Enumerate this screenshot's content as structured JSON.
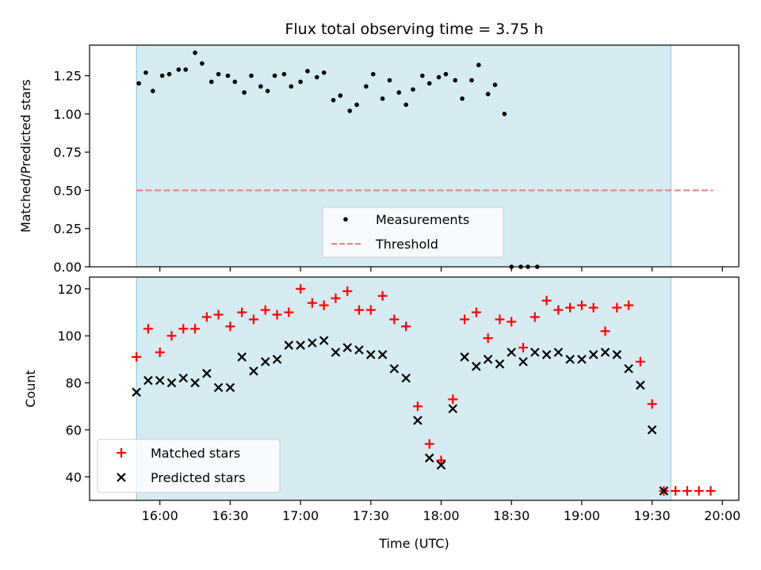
{
  "chart_data": [
    {
      "type": "scatter",
      "title": "Flux total observing time = 3.75 h",
      "ylabel": "Matched/Predicted stars",
      "xlabel": "",
      "x_axis": "time_utc",
      "ylim": [
        0,
        1.45
      ],
      "yticks": [
        0.0,
        0.25,
        0.5,
        0.75,
        1.0,
        1.25
      ],
      "ytick_labels": [
        "0.00",
        "0.25",
        "0.50",
        "0.75",
        "1.00",
        "1.25"
      ],
      "shaded_span": {
        "start": "15:50",
        "end": "19:38",
        "color": "#add8e6"
      },
      "legend_position": "lower center",
      "series": [
        {
          "name": "Measurements",
          "kind": "points",
          "color": "#000000",
          "points": [
            [
              "15:51",
              1.2
            ],
            [
              "15:54",
              1.27
            ],
            [
              "15:57",
              1.15
            ],
            [
              "16:01",
              1.25
            ],
            [
              "16:04",
              1.26
            ],
            [
              "16:08",
              1.29
            ],
            [
              "16:11",
              1.29
            ],
            [
              "16:15",
              1.4
            ],
            [
              "16:18",
              1.33
            ],
            [
              "16:22",
              1.21
            ],
            [
              "16:25",
              1.26
            ],
            [
              "16:29",
              1.25
            ],
            [
              "16:32",
              1.21
            ],
            [
              "16:36",
              1.14
            ],
            [
              "16:39",
              1.25
            ],
            [
              "16:43",
              1.18
            ],
            [
              "16:46",
              1.15
            ],
            [
              "16:49",
              1.25
            ],
            [
              "16:53",
              1.26
            ],
            [
              "16:56",
              1.18
            ],
            [
              "17:00",
              1.21
            ],
            [
              "17:03",
              1.28
            ],
            [
              "17:07",
              1.24
            ],
            [
              "17:10",
              1.27
            ],
            [
              "17:14",
              1.09
            ],
            [
              "17:17",
              1.12
            ],
            [
              "17:21",
              1.02
            ],
            [
              "17:24",
              1.06
            ],
            [
              "17:28",
              1.18
            ],
            [
              "17:31",
              1.26
            ],
            [
              "17:35",
              1.1
            ],
            [
              "17:38",
              1.22
            ],
            [
              "17:42",
              1.14
            ],
            [
              "17:45",
              1.06
            ],
            [
              "17:48",
              1.16
            ],
            [
              "17:52",
              1.25
            ],
            [
              "17:55",
              1.2
            ],
            [
              "17:59",
              1.24
            ],
            [
              "18:02",
              1.26
            ],
            [
              "18:06",
              1.22
            ],
            [
              "18:09",
              1.1
            ],
            [
              "18:13",
              1.22
            ],
            [
              "18:16",
              1.32
            ],
            [
              "18:20",
              1.13
            ],
            [
              "18:23",
              1.19
            ],
            [
              "18:27",
              1.0
            ],
            [
              "18:30",
              0.0
            ],
            [
              "18:34",
              0.0
            ],
            [
              "18:37",
              0.0
            ],
            [
              "18:41",
              0.0
            ]
          ]
        },
        {
          "name": "Threshold",
          "kind": "dashed-line",
          "color": "#f08080",
          "points": [
            [
              "15:50",
              0.5
            ],
            [
              "19:56",
              0.5
            ]
          ]
        }
      ]
    },
    {
      "type": "scatter",
      "title": "",
      "ylabel": "Count",
      "xlabel": "Time (UTC)",
      "x_axis": "time_utc",
      "xticks": [
        "16:00",
        "16:30",
        "17:00",
        "17:30",
        "18:00",
        "18:30",
        "19:00",
        "19:30",
        "20:00"
      ],
      "ylim": [
        30,
        125
      ],
      "yticks": [
        40,
        60,
        80,
        100,
        120
      ],
      "ytick_labels": [
        "40",
        "60",
        "80",
        "100",
        "120"
      ],
      "shaded_span": {
        "start": "15:50",
        "end": "19:38",
        "color": "#add8e6"
      },
      "legend_position": "lower left",
      "series": [
        {
          "name": "Matched stars",
          "kind": "plus",
          "color": "#ff0000",
          "points": [
            [
              "15:50",
              91
            ],
            [
              "15:55",
              103
            ],
            [
              "16:00",
              93
            ],
            [
              "16:05",
              100
            ],
            [
              "16:10",
              103
            ],
            [
              "16:15",
              103
            ],
            [
              "16:20",
              108
            ],
            [
              "16:25",
              109
            ],
            [
              "16:30",
              104
            ],
            [
              "16:35",
              110
            ],
            [
              "16:40",
              107
            ],
            [
              "16:45",
              111
            ],
            [
              "16:50",
              109
            ],
            [
              "16:55",
              110
            ],
            [
              "17:00",
              120
            ],
            [
              "17:05",
              114
            ],
            [
              "17:10",
              113
            ],
            [
              "17:15",
              116
            ],
            [
              "17:20",
              119
            ],
            [
              "17:25",
              111
            ],
            [
              "17:30",
              111
            ],
            [
              "17:35",
              117
            ],
            [
              "17:40",
              107
            ],
            [
              "17:45",
              104
            ],
            [
              "17:50",
              70
            ],
            [
              "17:55",
              54
            ],
            [
              "18:00",
              47
            ],
            [
              "18:05",
              73
            ],
            [
              "18:10",
              107
            ],
            [
              "18:15",
              110
            ],
            [
              "18:20",
              99
            ],
            [
              "18:25",
              107
            ],
            [
              "18:30",
              106
            ],
            [
              "18:35",
              95
            ],
            [
              "18:40",
              108
            ],
            [
              "18:45",
              115
            ],
            [
              "18:50",
              111
            ],
            [
              "18:55",
              112
            ],
            [
              "19:00",
              113
            ],
            [
              "19:05",
              112
            ],
            [
              "19:10",
              102
            ],
            [
              "19:15",
              112
            ],
            [
              "19:20",
              113
            ],
            [
              "19:25",
              89
            ],
            [
              "19:30",
              71
            ],
            [
              "19:35",
              34
            ],
            [
              "19:40",
              34
            ],
            [
              "19:45",
              34
            ],
            [
              "19:50",
              34
            ],
            [
              "19:55",
              34
            ]
          ]
        },
        {
          "name": "Predicted stars",
          "kind": "x",
          "color": "#000000",
          "points": [
            [
              "15:50",
              76
            ],
            [
              "15:55",
              81
            ],
            [
              "16:00",
              81
            ],
            [
              "16:05",
              80
            ],
            [
              "16:10",
              82
            ],
            [
              "16:15",
              80
            ],
            [
              "16:20",
              84
            ],
            [
              "16:25",
              78
            ],
            [
              "16:30",
              78
            ],
            [
              "16:35",
              91
            ],
            [
              "16:40",
              85
            ],
            [
              "16:45",
              89
            ],
            [
              "16:50",
              90
            ],
            [
              "16:55",
              96
            ],
            [
              "17:00",
              96
            ],
            [
              "17:05",
              97
            ],
            [
              "17:10",
              98
            ],
            [
              "17:15",
              93
            ],
            [
              "17:20",
              95
            ],
            [
              "17:25",
              94
            ],
            [
              "17:30",
              92
            ],
            [
              "17:35",
              92
            ],
            [
              "17:40",
              86
            ],
            [
              "17:45",
              82
            ],
            [
              "17:50",
              64
            ],
            [
              "17:55",
              48
            ],
            [
              "18:00",
              45
            ],
            [
              "18:05",
              69
            ],
            [
              "18:10",
              91
            ],
            [
              "18:15",
              87
            ],
            [
              "18:20",
              90
            ],
            [
              "18:25",
              88
            ],
            [
              "18:30",
              93
            ],
            [
              "18:35",
              89
            ],
            [
              "18:40",
              93
            ],
            [
              "18:45",
              92
            ],
            [
              "18:50",
              93
            ],
            [
              "18:55",
              90
            ],
            [
              "19:00",
              90
            ],
            [
              "19:05",
              92
            ],
            [
              "19:10",
              93
            ],
            [
              "19:15",
              92
            ],
            [
              "19:20",
              86
            ],
            [
              "19:25",
              79
            ],
            [
              "19:30",
              60
            ],
            [
              "19:35",
              34
            ]
          ]
        }
      ]
    }
  ]
}
